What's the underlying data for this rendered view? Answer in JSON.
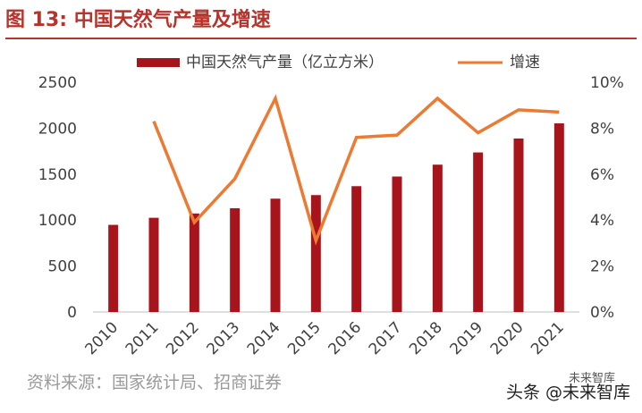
{
  "figure_title": "图 13:  中国天然气产量及增速",
  "source_note": "资料来源：国家统计局、招商证券",
  "watermark": "头条 @未来智库",
  "watermark_small": "未来智库",
  "colors": {
    "bar": "#a8141b",
    "line": "#ec7a32",
    "title": "#b5342c",
    "axis": "#bfbfbf",
    "text": "#404040"
  },
  "chart_data": {
    "type": "bar",
    "categories": [
      "2010",
      "2011",
      "2012",
      "2013",
      "2014",
      "2015",
      "2016",
      "2017",
      "2018",
      "2019",
      "2020",
      "2021"
    ],
    "series": [
      {
        "name": "中国天然气产量（亿立方米）",
        "type": "bar",
        "axis": "left",
        "values": [
          948,
          1025,
          1072,
          1129,
          1233,
          1272,
          1369,
          1474,
          1603,
          1736,
          1888,
          2053
        ]
      },
      {
        "name": "增速",
        "type": "line",
        "axis": "right",
        "values": [
          null,
          8.3,
          3.9,
          5.8,
          9.3,
          3.1,
          7.6,
          7.7,
          9.3,
          7.8,
          8.8,
          8.7
        ]
      }
    ],
    "left_axis": {
      "ylim": [
        0,
        2500
      ],
      "ticks": [
        "0",
        "500",
        "1000",
        "1500",
        "2000",
        "2500"
      ]
    },
    "right_axis": {
      "ylim": [
        0,
        10
      ],
      "ticks": [
        "0%",
        "2%",
        "4%",
        "6%",
        "8%",
        "10%"
      ]
    },
    "legend_position": "top-center",
    "grid": false
  }
}
